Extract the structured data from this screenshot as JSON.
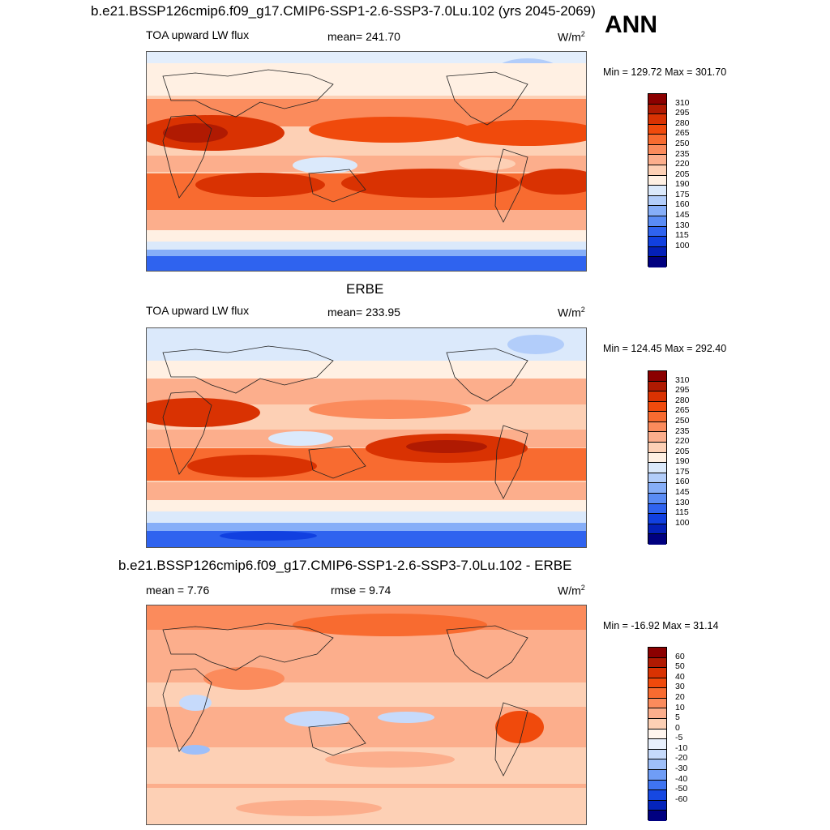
{
  "header": {
    "title": "b.e21.BSSP126cmip6.f09_g17.CMIP6-SSP1-2.6-SSP3-7.0Lu.102 (yrs 2045-2069)",
    "season": "ANN"
  },
  "panels": [
    {
      "heading": "",
      "left_label": "TOA upward LW flux",
      "center_label": "mean= 241.70",
      "units_base": "W/m",
      "units_exp": "2",
      "minmax": "Min = 129.72 Max = 301.70",
      "colorbar_ticks": [
        "310",
        "295",
        "280",
        "265",
        "250",
        "235",
        "220",
        "205",
        "190",
        "175",
        "160",
        "145",
        "130",
        "115",
        "100"
      ],
      "colorbar_colors": [
        "#8b0000",
        "#b01a02",
        "#d93202",
        "#f04a0c",
        "#f86b30",
        "#fb8b5c",
        "#fcae8c",
        "#fdd0b5",
        "#fff0e3",
        "#dbe9fb",
        "#b2cdfa",
        "#86aef8",
        "#5a8cf5",
        "#2f63ef",
        "#1140e0",
        "#0420b8",
        "#000080"
      ]
    },
    {
      "heading": "ERBE",
      "left_label": "TOA upward LW flux",
      "center_label": "mean= 233.95",
      "units_base": "W/m",
      "units_exp": "2",
      "minmax": "Min = 124.45 Max = 292.40",
      "colorbar_ticks": [
        "310",
        "295",
        "280",
        "265",
        "250",
        "235",
        "220",
        "205",
        "190",
        "175",
        "160",
        "145",
        "130",
        "115",
        "100"
      ],
      "colorbar_colors": [
        "#8b0000",
        "#b01a02",
        "#d93202",
        "#f04a0c",
        "#f86b30",
        "#fb8b5c",
        "#fcae8c",
        "#fdd0b5",
        "#fff0e3",
        "#dbe9fb",
        "#b2cdfa",
        "#86aef8",
        "#5a8cf5",
        "#2f63ef",
        "#1140e0",
        "#0420b8",
        "#000080"
      ]
    },
    {
      "heading": "b.e21.BSSP126cmip6.f09_g17.CMIP6-SSP1-2.6-SSP3-7.0Lu.102 - ERBE",
      "left_label": "mean =   7.76",
      "center_label": "rmse =   9.74",
      "units_base": "W/m",
      "units_exp": "2",
      "minmax": "Min = -16.92 Max =  31.14",
      "colorbar_ticks": [
        "60",
        "50",
        "40",
        "30",
        "20",
        "10",
        "5",
        "0",
        "-5",
        "-10",
        "-20",
        "-30",
        "-40",
        "-50",
        "-60"
      ],
      "colorbar_colors": [
        "#8b0000",
        "#b01a02",
        "#d93202",
        "#f04a0c",
        "#f86b30",
        "#fb8b5c",
        "#fcae8c",
        "#fdd0b5",
        "#fff5ee",
        "#e8f0fd",
        "#c6dafb",
        "#9ebff9",
        "#6f9df6",
        "#3f74f1",
        "#1648e2",
        "#0424bb",
        "#000080"
      ]
    }
  ]
}
